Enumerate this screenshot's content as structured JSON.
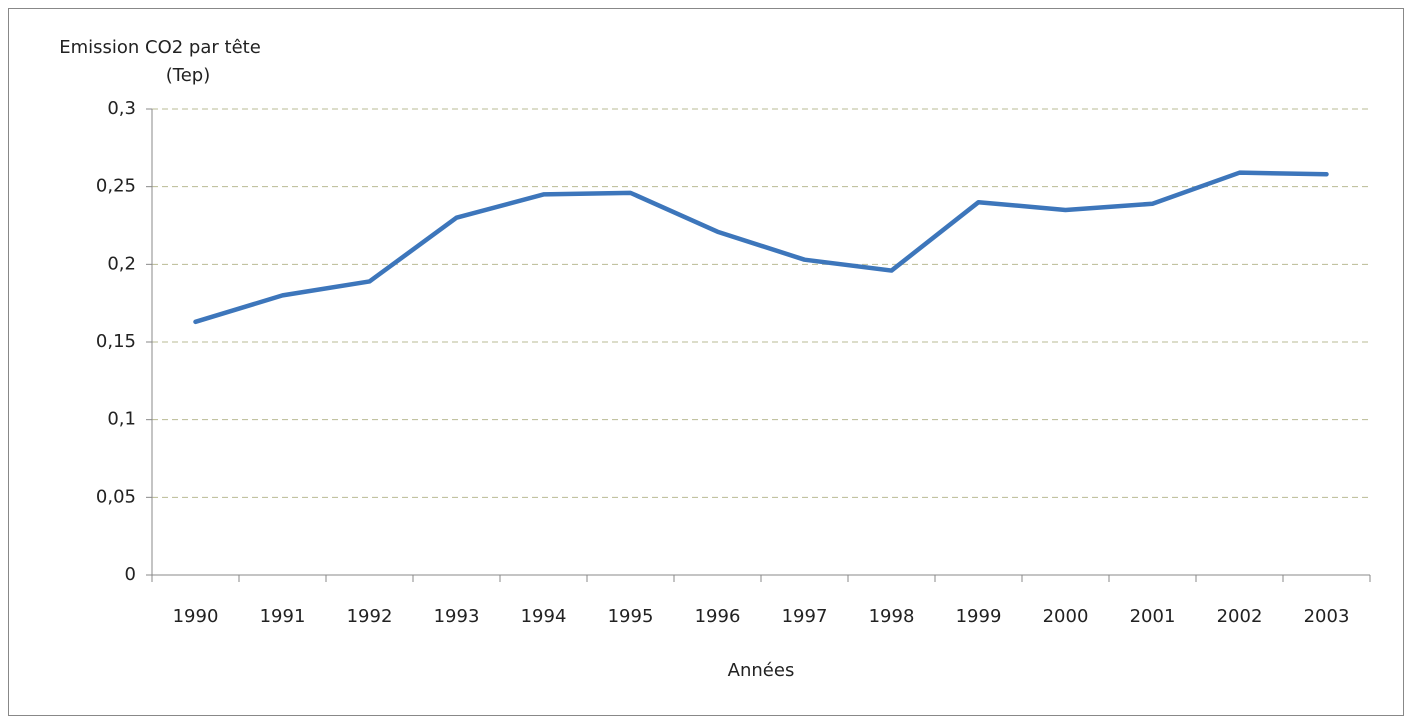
{
  "chart_data": {
    "type": "line",
    "ylabel": [
      "Emission CO2 par tête",
      "(Tep)"
    ],
    "xlabel": "Années",
    "categories": [
      "1990",
      "1991",
      "1992",
      "1993",
      "1994",
      "1995",
      "1996",
      "1997",
      "1998",
      "1999",
      "2000",
      "2001",
      "2002",
      "2003"
    ],
    "series": [
      {
        "color": "#3d76bb",
        "values": [
          0.163,
          0.18,
          0.189,
          0.23,
          0.245,
          0.246,
          0.221,
          0.203,
          0.196,
          0.24,
          0.235,
          0.239,
          0.259,
          0.258
        ]
      }
    ],
    "ylim": [
      0,
      0.3
    ],
    "yticks": [
      0,
      {
        "value": 0.05,
        "label": "0,05"
      },
      {
        "value": 0.1,
        "label": "0,1"
      },
      {
        "value": 0.15,
        "label": "0,15"
      },
      {
        "value": 0.2,
        "label": "0,2"
      },
      {
        "value": 0.25,
        "label": "0,25"
      },
      {
        "value": 0.3,
        "label": "0,3"
      }
    ],
    "grid": true
  }
}
